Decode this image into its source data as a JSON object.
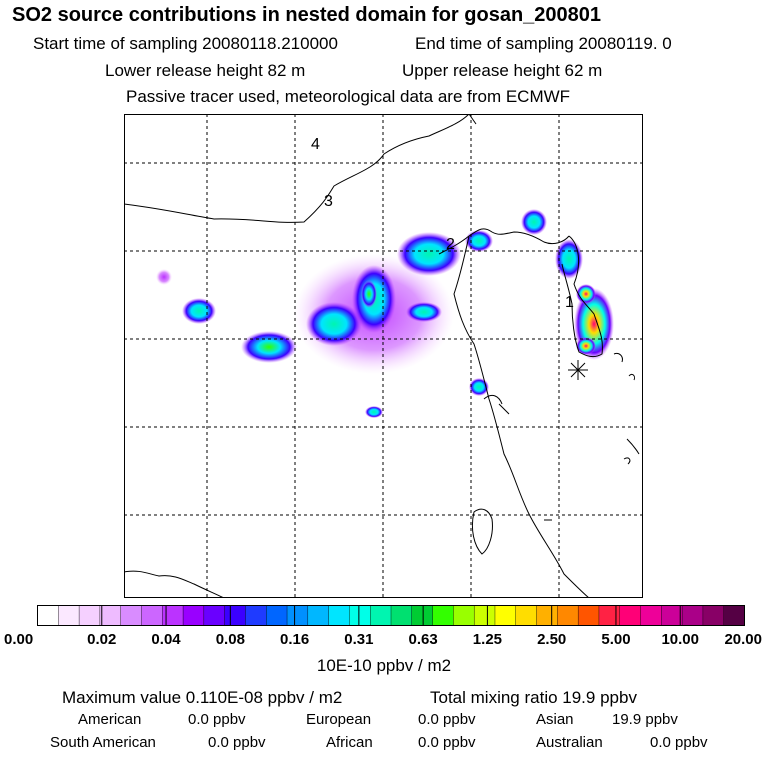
{
  "header": {
    "title": "SO2 source contributions in nested domain for gosan_200801",
    "start_sampling": "Start time of sampling 20080118.210000",
    "end_sampling": "End time of sampling 20080119.     0",
    "lower_release": "Lower release height   82 m",
    "upper_release": "Upper release height   62 m",
    "tracer_note": "Passive tracer used, meteorological data are from ECMWF"
  },
  "map": {
    "labels": [
      "1",
      "2",
      "3",
      "4"
    ],
    "station_marker": "asterisk-icon"
  },
  "colorbar": {
    "ticks": [
      "0.00",
      "0.02",
      "0.04",
      "0.08",
      "0.16",
      "0.31",
      "0.63",
      "1.25",
      "2.50",
      "5.00",
      "10.00",
      "20.00"
    ],
    "colors": [
      "#ffffff",
      "#fbe8ff",
      "#f5d0ff",
      "#eebbff",
      "#d98cff",
      "#cc66ff",
      "#bb33ff",
      "#9900ff",
      "#6a00ff",
      "#3b00ff",
      "#1f3bff",
      "#0066ff",
      "#0090ff",
      "#00b7ff",
      "#00e5ff",
      "#00ffe8",
      "#00f5b0",
      "#00e070",
      "#00cc33",
      "#33ff00",
      "#99ff00",
      "#ccff00",
      "#ffff00",
      "#ffdd00",
      "#ffb000",
      "#ff8800",
      "#ff5500",
      "#ff2244",
      "#ff0077",
      "#ee0099",
      "#cc0099",
      "#aa0088",
      "#880066",
      "#550044"
    ],
    "unit": "10E-10 ppbv / m2"
  },
  "stats": {
    "max_value": "Maximum value  0.110E-08 ppbv / m2",
    "total_mixing": "Total mixing ratio      19.9 ppbv",
    "regions": [
      {
        "name": "American",
        "value": "0.0 ppbv"
      },
      {
        "name": "European",
        "value": "0.0 ppbv"
      },
      {
        "name": "Asian",
        "value": "19.9 ppbv"
      },
      {
        "name": "South American",
        "value": "0.0 ppbv"
      },
      {
        "name": "African",
        "value": "0.0 ppbv"
      },
      {
        "name": "Australian",
        "value": "0.0 ppbv"
      }
    ]
  }
}
